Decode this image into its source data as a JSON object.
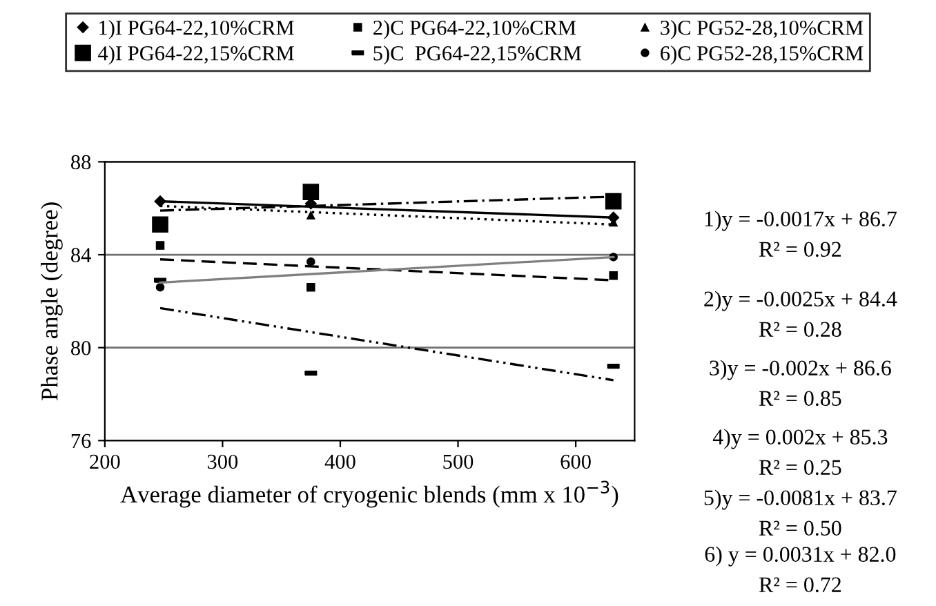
{
  "chart_data": {
    "type": "scatter",
    "xlabel": "Average diameter of cryogenic blends (mm x 10$^{−3}$)",
    "ylabel": "Phase angle (degree)",
    "xlim": [
      200,
      650
    ],
    "xticks": [
      200,
      300,
      400,
      500,
      600
    ],
    "ylim": [
      76,
      88
    ],
    "yticks": [
      76,
      80,
      84,
      88
    ],
    "grid": "y",
    "legend": "top",
    "series": [
      {
        "name": "1)I PG64-22,10%CRM",
        "color": "#000000",
        "marker": "diamond",
        "x": [
          247,
          375,
          632
        ],
        "values": [
          86.3,
          86.2,
          85.6
        ]
      },
      {
        "name": "2)C PG64-22,10%CRM",
        "color": "#000000",
        "marker": "square",
        "x": [
          247,
          375,
          632
        ],
        "values": [
          84.4,
          82.6,
          83.1
        ]
      },
      {
        "name": "3)C PG52-28,10%CRM",
        "color": "#000000",
        "marker": "triangle",
        "x": [
          375,
          632
        ],
        "values": [
          85.7,
          85.4
        ]
      },
      {
        "name": "4)I PG64-22,15%CRM",
        "color": "#000000",
        "marker": "square",
        "x": [
          247,
          375,
          632
        ],
        "values": [
          85.3,
          86.7,
          86.3
        ]
      },
      {
        "name": "5)C  PG64-22,15%CRM",
        "color": "#000000",
        "x": [
          247,
          375,
          632
        ],
        "values": [
          82.9,
          78.9,
          79.2
        ]
      },
      {
        "name": "6)C PG52-28,15%CRM",
        "color": "#000000",
        "marker": "circle",
        "x": [
          247,
          375,
          632
        ],
        "values": [
          82.6,
          83.7,
          83.9
        ]
      },
      {
        "type": "line",
        "color": "#000000",
        "line_style": "solid",
        "marker": "none",
        "x": [
          247,
          632
        ],
        "values": [
          86.3,
          85.6
        ]
      },
      {
        "type": "line",
        "color": "#000000",
        "line_style": "dashed",
        "marker": "none",
        "x": [
          247,
          632
        ],
        "values": [
          83.8,
          82.9
        ]
      },
      {
        "type": "line",
        "color": "#000000",
        "line_style": "dotted",
        "marker": "none",
        "x": [
          247,
          632
        ],
        "values": [
          86.1,
          85.3
        ]
      },
      {
        "type": "line",
        "color": "#000000",
        "line_style": "dashdot",
        "marker": "none",
        "x": [
          247,
          632
        ],
        "values": [
          85.9,
          86.5
        ]
      },
      {
        "type": "line",
        "color": "#000000",
        "line_style": "dashdotdot",
        "marker": "none",
        "x": [
          247,
          632
        ],
        "values": [
          81.7,
          78.6
        ]
      },
      {
        "type": "line",
        "color": "#808080",
        "line_style": "solid",
        "marker": "none",
        "x": [
          247,
          632
        ],
        "values": [
          82.8,
          83.9
        ]
      }
    ],
    "annotations": [
      "1)y = -0.0017x + 86.7",
      "R² = 0.92",
      "2)y = -0.0025x + 84.4",
      "R² = 0.28",
      "3)y = -0.002x + 86.6",
      "R² = 0.85",
      "4)y = 0.002x + 85.3",
      "R² = 0.25",
      "5)y = -0.0081x + 83.7",
      "R² = 0.50",
      "6) y = 0.0031x + 82.0",
      "R² = 0.72"
    ]
  }
}
